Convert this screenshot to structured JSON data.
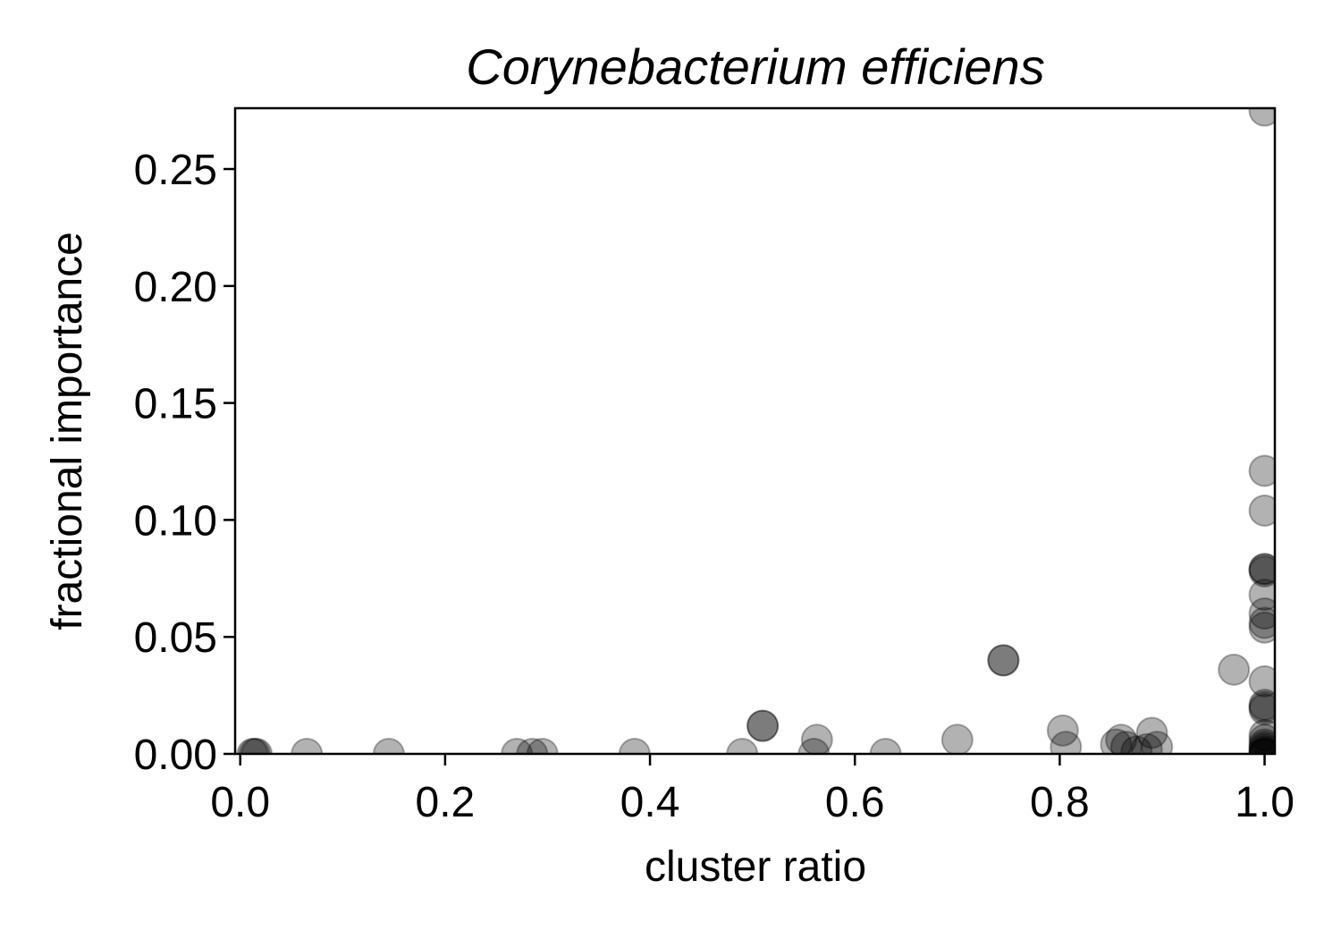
{
  "chart_data": {
    "type": "scatter",
    "title": "Corynebacterium efficiens",
    "xlabel": "cluster ratio",
    "ylabel": "fractional importance",
    "xlim": [
      -0.005,
      1.01
    ],
    "ylim": [
      0.0,
      0.276
    ],
    "xticks": [
      0.0,
      0.2,
      0.4,
      0.6,
      0.8,
      1.0
    ],
    "xtick_labels": [
      "0.0",
      "0.2",
      "0.4",
      "0.6",
      "0.8",
      "1.0"
    ],
    "yticks": [
      0.0,
      0.05,
      0.1,
      0.15,
      0.2,
      0.25
    ],
    "ytick_labels": [
      "0.00",
      "0.05",
      "0.10",
      "0.15",
      "0.20",
      "0.25"
    ],
    "grid": false,
    "marker_color": "#000000",
    "marker_alpha": 0.3,
    "points": [
      {
        "x": 0.012,
        "y": 0.0
      },
      {
        "x": 0.014,
        "y": 0.0
      },
      {
        "x": 0.016,
        "y": 0.0
      },
      {
        "x": 0.065,
        "y": 0.0
      },
      {
        "x": 0.145,
        "y": 0.0
      },
      {
        "x": 0.27,
        "y": 0.0
      },
      {
        "x": 0.285,
        "y": 0.0
      },
      {
        "x": 0.295,
        "y": 0.0
      },
      {
        "x": 0.385,
        "y": 0.0
      },
      {
        "x": 0.49,
        "y": 0.0
      },
      {
        "x": 0.51,
        "y": 0.012
      },
      {
        "x": 0.51,
        "y": 0.012
      },
      {
        "x": 0.56,
        "y": 0.0
      },
      {
        "x": 0.563,
        "y": 0.006
      },
      {
        "x": 0.63,
        "y": 0.0
      },
      {
        "x": 0.7,
        "y": 0.006
      },
      {
        "x": 0.745,
        "y": 0.04
      },
      {
        "x": 0.745,
        "y": 0.04
      },
      {
        "x": 0.803,
        "y": 0.01
      },
      {
        "x": 0.806,
        "y": 0.003
      },
      {
        "x": 0.855,
        "y": 0.004
      },
      {
        "x": 0.86,
        "y": 0.006
      },
      {
        "x": 0.865,
        "y": 0.003
      },
      {
        "x": 0.875,
        "y": 0.001
      },
      {
        "x": 0.885,
        "y": 0.002
      },
      {
        "x": 0.89,
        "y": 0.009
      },
      {
        "x": 0.895,
        "y": 0.003
      },
      {
        "x": 0.97,
        "y": 0.036
      },
      {
        "x": 1.0,
        "y": 0.275
      },
      {
        "x": 1.0,
        "y": 0.121
      },
      {
        "x": 1.0,
        "y": 0.104
      },
      {
        "x": 1.0,
        "y": 0.079
      },
      {
        "x": 1.0,
        "y": 0.079
      },
      {
        "x": 1.0,
        "y": 0.078
      },
      {
        "x": 1.0,
        "y": 0.068
      },
      {
        "x": 1.0,
        "y": 0.06
      },
      {
        "x": 1.0,
        "y": 0.056
      },
      {
        "x": 1.0,
        "y": 0.054
      },
      {
        "x": 1.0,
        "y": 0.031
      },
      {
        "x": 1.0,
        "y": 0.021
      },
      {
        "x": 1.0,
        "y": 0.02
      },
      {
        "x": 1.0,
        "y": 0.019
      },
      {
        "x": 1.0,
        "y": 0.008
      },
      {
        "x": 1.0,
        "y": 0.006
      },
      {
        "x": 1.0,
        "y": 0.004
      },
      {
        "x": 1.0,
        "y": 0.003
      },
      {
        "x": 1.0,
        "y": 0.002
      },
      {
        "x": 1.0,
        "y": 0.001
      },
      {
        "x": 1.0,
        "y": 0.0
      },
      {
        "x": 1.0,
        "y": 0.0
      },
      {
        "x": 1.0,
        "y": 0.0
      }
    ]
  }
}
